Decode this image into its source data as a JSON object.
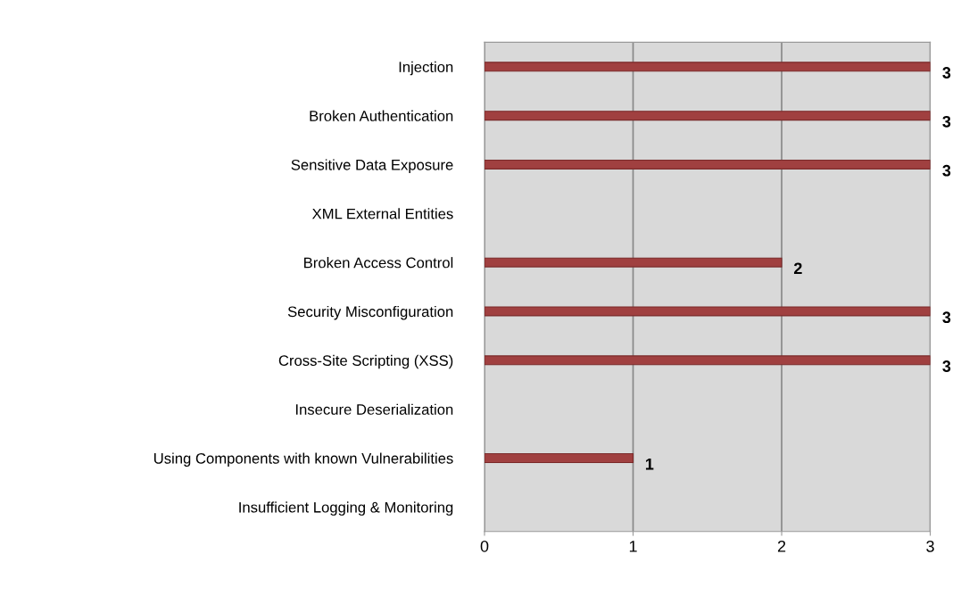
{
  "chart_data": {
    "type": "bar",
    "orientation": "horizontal",
    "categories": [
      "Injection",
      "Broken Authentication",
      "Sensitive Data Exposure",
      "XML External Entities",
      "Broken Access Control",
      "Security Misconfiguration",
      "Cross-Site Scripting (XSS)",
      "Insecure Deserialization",
      "Using Components with known Vulnerabilities",
      "Insufficient Logging & Monitoring"
    ],
    "values": [
      3,
      3,
      3,
      null,
      2,
      3,
      3,
      null,
      1,
      null
    ],
    "color": "#a04040",
    "xlim": [
      0,
      3
    ],
    "xticks": [
      0,
      1,
      2,
      3
    ],
    "grid": "x",
    "data_labels": true
  }
}
